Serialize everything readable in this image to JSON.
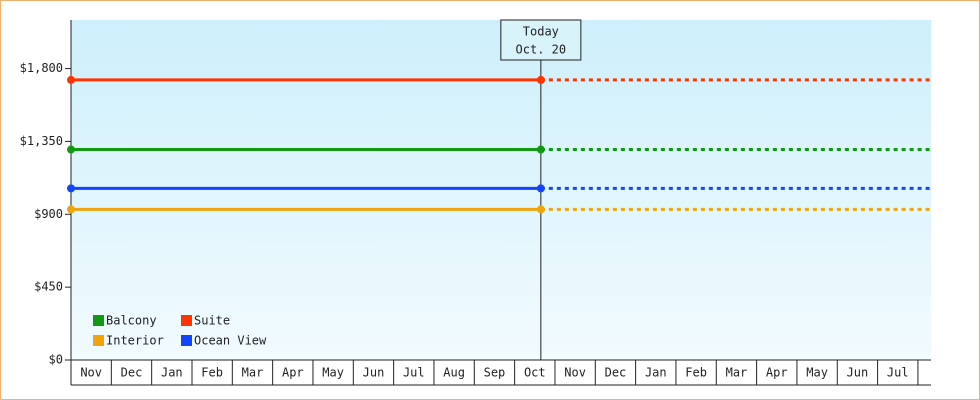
{
  "chart_data": {
    "type": "line",
    "today_label": [
      "Today",
      "Oct. 20"
    ],
    "categories": [
      "Nov",
      "Dec",
      "Jan",
      "Feb",
      "Mar",
      "Apr",
      "May",
      "Jun",
      "Jul",
      "Aug",
      "Sep",
      "Oct",
      "Nov",
      "Dec",
      "Jan",
      "Feb",
      "Mar",
      "Apr",
      "May",
      "Jun",
      "Jul"
    ],
    "series": [
      {
        "name": "Balcony",
        "color": "#119911",
        "values": [
          1300,
          1300,
          1300,
          1300,
          1300,
          1300,
          1300,
          1300,
          1300,
          1300,
          1300,
          1300,
          1300,
          1300,
          1300,
          1300,
          1300,
          1300,
          1300,
          1300,
          1300
        ]
      },
      {
        "name": "Suite",
        "color": "#ff3300",
        "values": [
          1730,
          1730,
          1730,
          1730,
          1730,
          1730,
          1730,
          1730,
          1730,
          1730,
          1730,
          1730,
          1730,
          1730,
          1730,
          1730,
          1730,
          1730,
          1730,
          1730,
          1730
        ]
      },
      {
        "name": "Interior",
        "color": "#f0a30a",
        "values": [
          930,
          930,
          930,
          930,
          930,
          930,
          930,
          930,
          930,
          930,
          930,
          930,
          930,
          930,
          930,
          930,
          930,
          930,
          930,
          930,
          930
        ]
      },
      {
        "name": "Ocean View",
        "color": "#1144ff",
        "values": [
          1060,
          1060,
          1060,
          1060,
          1060,
          1060,
          1060,
          1060,
          1060,
          1060,
          1060,
          1060,
          1060,
          1060,
          1060,
          1060,
          1060,
          1060,
          1060,
          1060,
          1060
        ]
      }
    ],
    "ylim": [
      0,
      2100
    ],
    "yticks": [
      {
        "value": 0,
        "label": "$0"
      },
      {
        "value": 450,
        "label": "$450"
      },
      {
        "value": 900,
        "label": "$900"
      },
      {
        "value": 1350,
        "label": "$1,350"
      },
      {
        "value": 1800,
        "label": "$1,800"
      }
    ],
    "legend": "bottom-left"
  }
}
